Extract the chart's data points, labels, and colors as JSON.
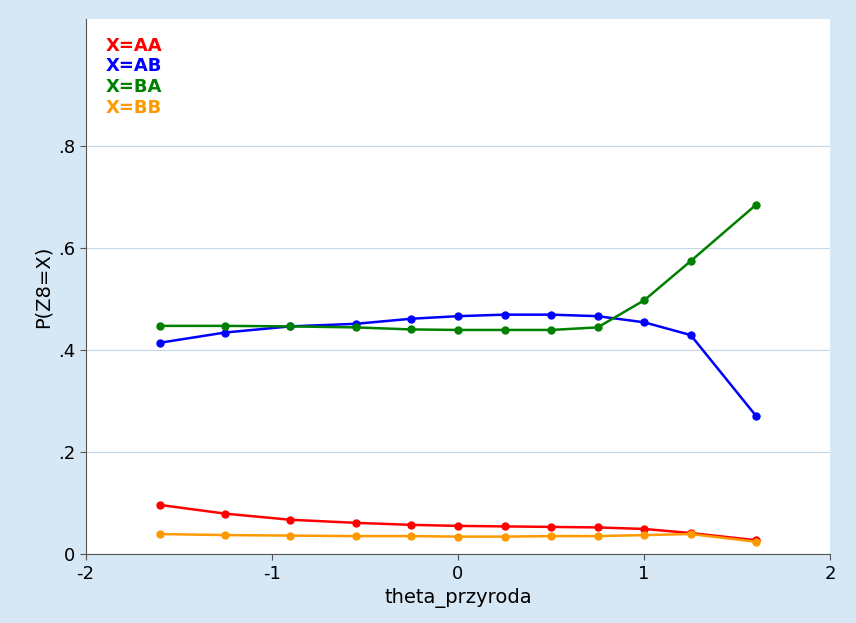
{
  "title": "",
  "xlabel": "theta_przyroda",
  "ylabel": "P(Z8=X)",
  "xlim": [
    -2.0,
    2.0
  ],
  "ylim": [
    0.0,
    1.05
  ],
  "yticks": [
    0.0,
    0.2,
    0.4,
    0.6,
    0.8
  ],
  "ytick_labels": [
    "0",
    ".2",
    ".4",
    ".6",
    ".8"
  ],
  "xticks": [
    -2,
    -1,
    0,
    1,
    2
  ],
  "background_color": "#d6e8f5",
  "plot_bg_color": "#ffffff",
  "grid_color": "#c5d8ea",
  "series": [
    {
      "label": "X=AA",
      "color": "#ff0000",
      "x": [
        -1.6,
        -1.25,
        -0.9,
        -0.55,
        -0.25,
        0.0,
        0.25,
        0.5,
        0.75,
        1.0,
        1.25,
        1.6
      ],
      "y": [
        0.097,
        0.08,
        0.068,
        0.062,
        0.058,
        0.056,
        0.055,
        0.054,
        0.053,
        0.05,
        0.042,
        0.028
      ]
    },
    {
      "label": "X=AB",
      "color": "#0000ff",
      "x": [
        -1.6,
        -1.25,
        -0.9,
        -0.55,
        -0.25,
        0.0,
        0.25,
        0.5,
        0.75,
        1.0,
        1.25,
        1.6
      ],
      "y": [
        0.415,
        0.435,
        0.447,
        0.452,
        0.462,
        0.467,
        0.47,
        0.47,
        0.467,
        0.455,
        0.43,
        0.272
      ]
    },
    {
      "label": "X=BA",
      "color": "#008000",
      "x": [
        -1.6,
        -1.25,
        -0.9,
        -0.55,
        -0.25,
        0.0,
        0.25,
        0.5,
        0.75,
        1.0,
        1.25,
        1.6
      ],
      "y": [
        0.448,
        0.448,
        0.447,
        0.445,
        0.441,
        0.44,
        0.44,
        0.44,
        0.445,
        0.498,
        0.575,
        0.685
      ]
    },
    {
      "label": "X=BB",
      "color": "#ff9900",
      "x": [
        -1.6,
        -1.25,
        -0.9,
        -0.55,
        -0.25,
        0.0,
        0.25,
        0.5,
        0.75,
        1.0,
        1.25,
        1.6
      ],
      "y": [
        0.04,
        0.038,
        0.037,
        0.036,
        0.036,
        0.035,
        0.035,
        0.036,
        0.036,
        0.038,
        0.04,
        0.025
      ]
    }
  ],
  "legend_colors": [
    "#ff0000",
    "#0000ff",
    "#008000",
    "#ff9900"
  ],
  "legend_labels": [
    "X=AA",
    "X=AB",
    "X=BA",
    "X=BB"
  ],
  "marker": "o",
  "markersize": 5,
  "linewidth": 1.8,
  "legend_fontsize": 13,
  "axis_label_fontsize": 14,
  "tick_fontsize": 13
}
